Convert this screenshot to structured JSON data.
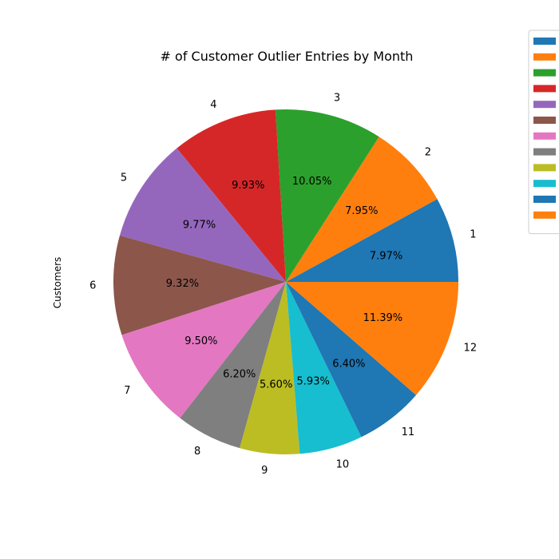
{
  "chart_data": {
    "type": "pie",
    "title": "# of Customer Outlier Entries by Month",
    "ylabel": "Customers",
    "categories": [
      "1",
      "2",
      "3",
      "4",
      "5",
      "6",
      "7",
      "8",
      "9",
      "10",
      "11",
      "12"
    ],
    "values": [
      7.97,
      7.95,
      10.05,
      9.93,
      9.77,
      9.32,
      9.5,
      6.2,
      5.6,
      5.93,
      6.4,
      11.39
    ],
    "percent_labels": [
      "7.97%",
      "7.95%",
      "10.05%",
      "9.93%",
      "9.77%",
      "9.32%",
      "9.50%",
      "6.20%",
      "5.60%",
      "5.93%",
      "6.40%",
      "11.39%"
    ],
    "colors": [
      "#1f77b4",
      "#ff7f0e",
      "#2ca02c",
      "#d62728",
      "#9467bd",
      "#8c564b",
      "#e377c2",
      "#7f7f7f",
      "#bcbd22",
      "#17becf",
      "#1f77b4",
      "#ff7f0e"
    ],
    "start_angle_deg": 0,
    "direction": "counterclockwise",
    "legend": {
      "placement": "top-right",
      "entries": [
        "",
        "",
        "",
        "",
        "",
        "",
        "",
        "",
        "",
        "",
        "",
        ""
      ]
    }
  }
}
